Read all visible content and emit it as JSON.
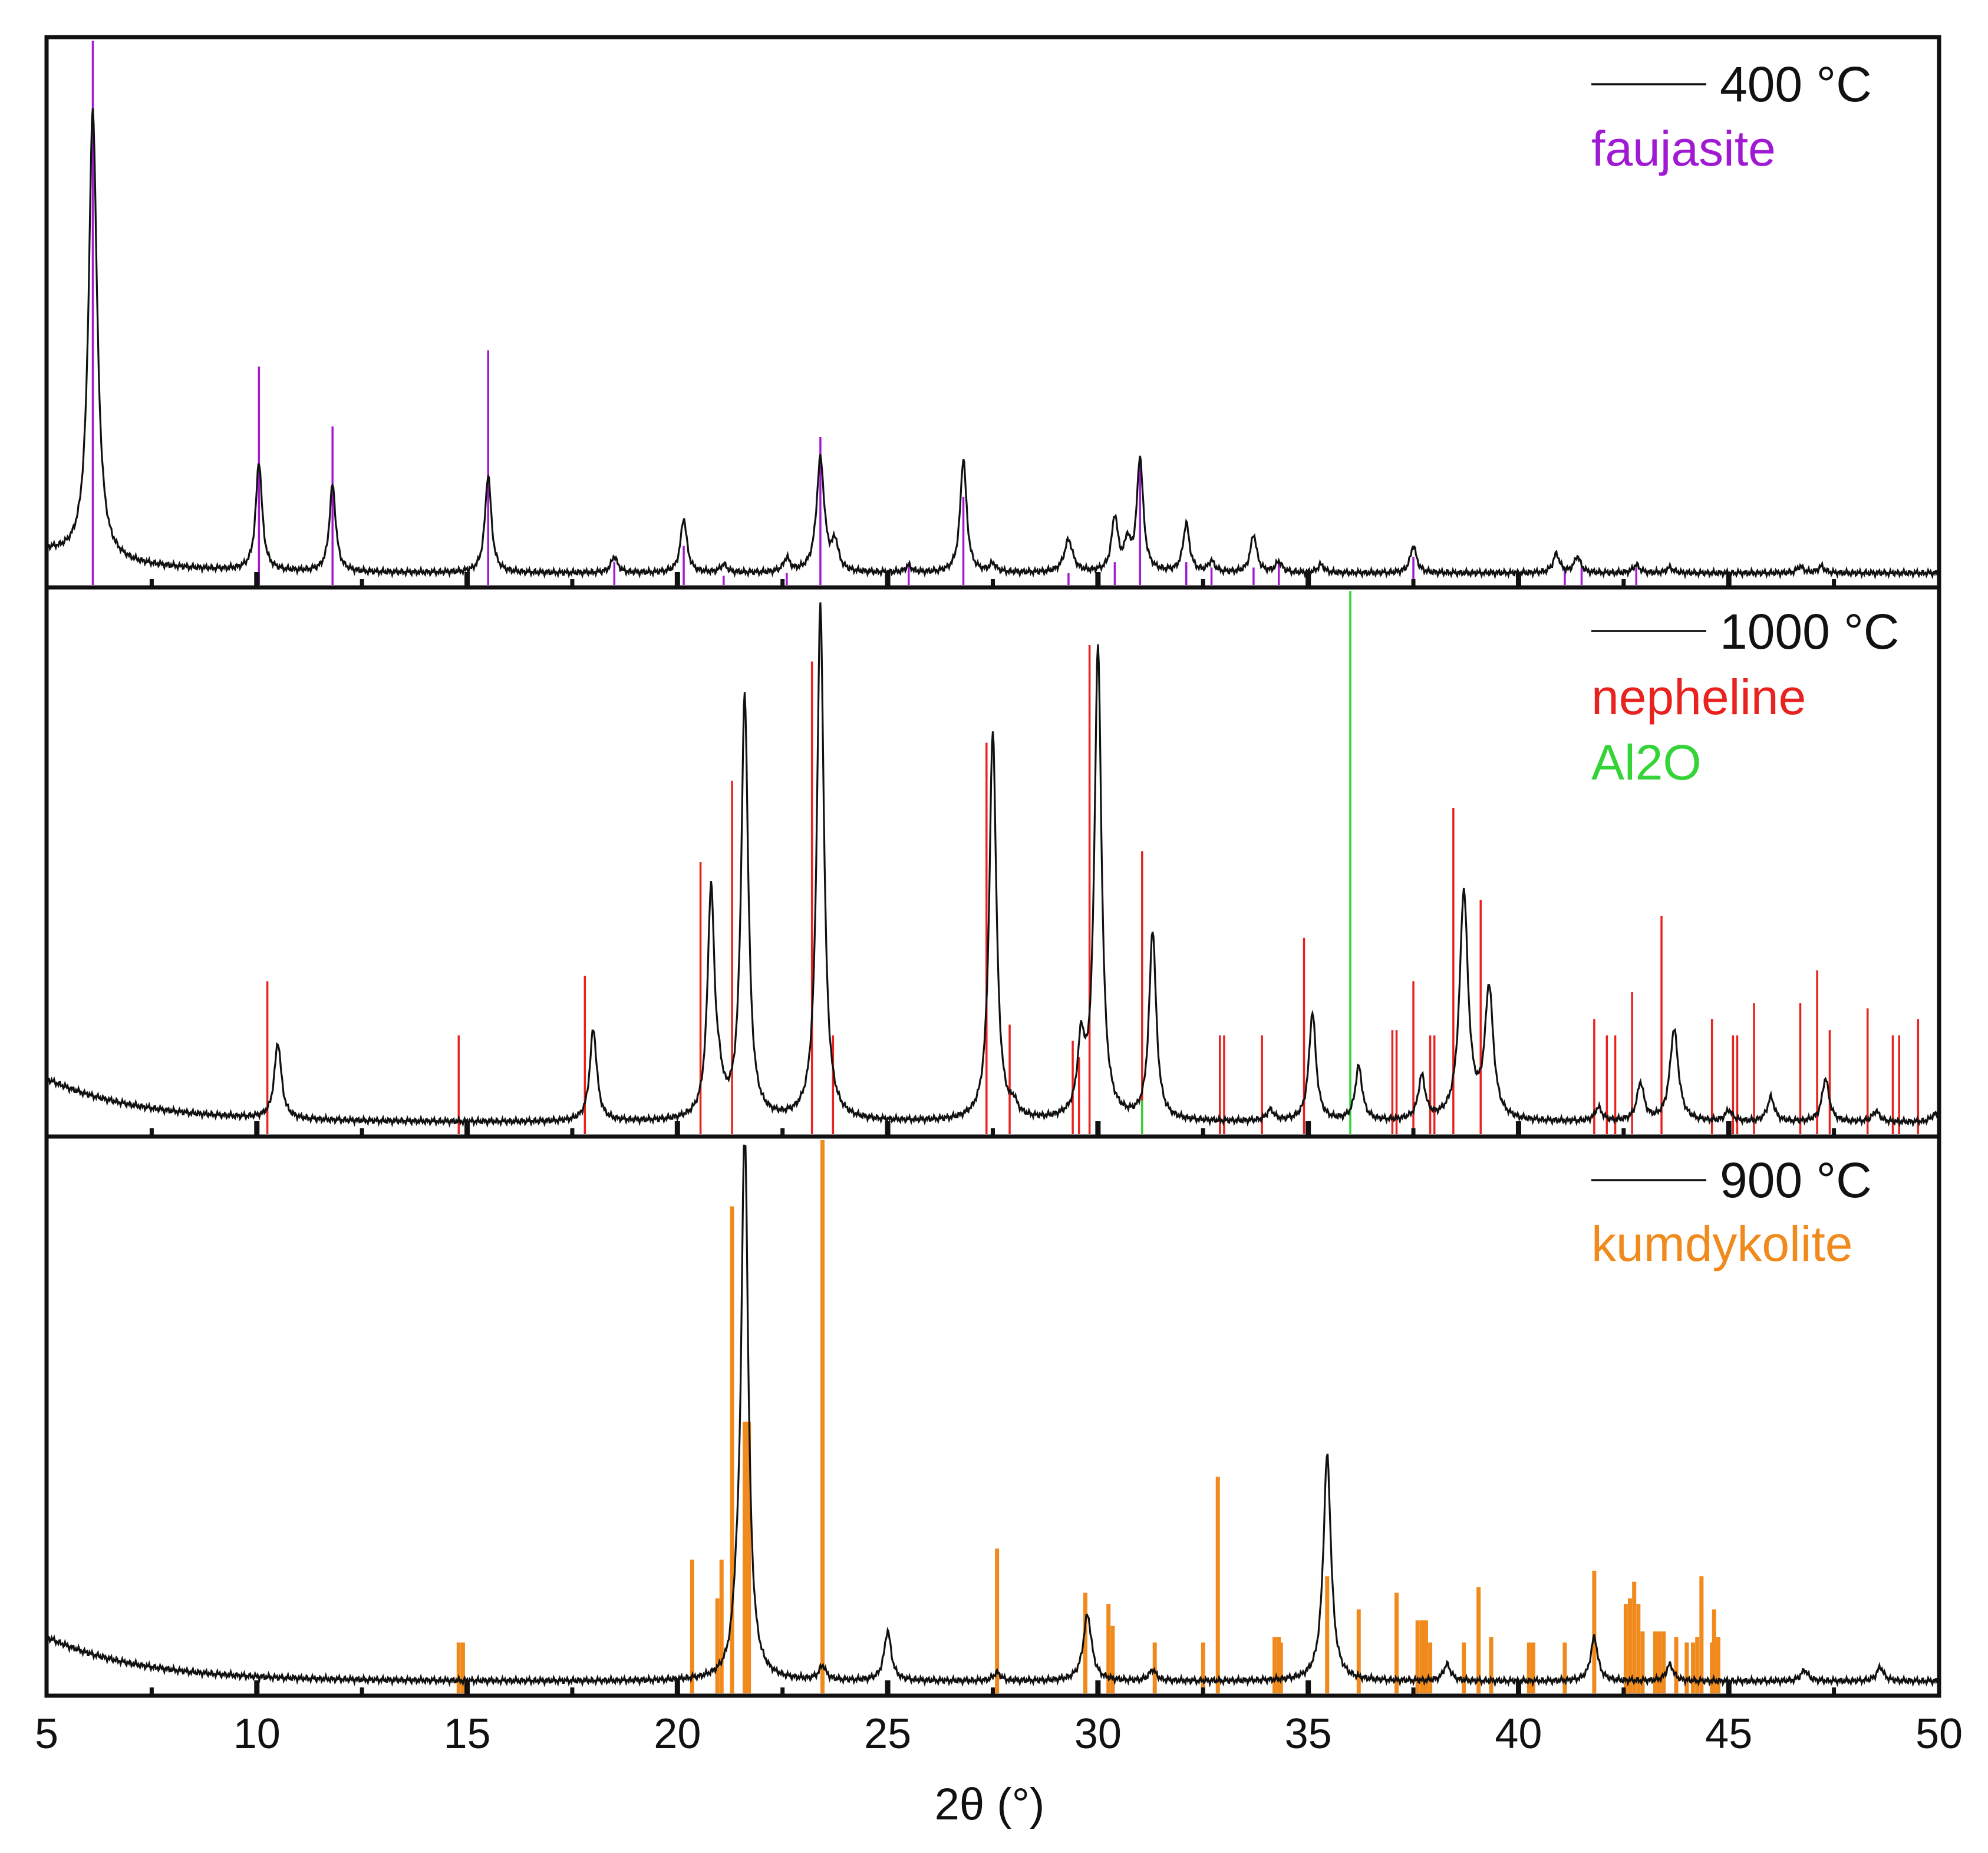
{
  "chart_data": {
    "type": "line",
    "title": "",
    "xlabel": "2θ (°)",
    "ylabel": "",
    "xlim": [
      5,
      50
    ],
    "ylim": [
      0,
      100
    ],
    "x_ticks": [
      5,
      10,
      15,
      20,
      25,
      30,
      35,
      40,
      45,
      50
    ],
    "x_tick_labels": [
      "5",
      "10",
      "15",
      "20",
      "25",
      "30",
      "35",
      "40",
      "45",
      "50"
    ],
    "grid": false,
    "panels": [
      {
        "id": "p400",
        "label": "400 °C",
        "line_color": "#111111",
        "baseline": 2,
        "background": 4,
        "peaks": [
          [
            6.1,
            83,
            0.12
          ],
          [
            10.05,
            20,
            0.09
          ],
          [
            11.8,
            16,
            0.09
          ],
          [
            15.5,
            18,
            0.09
          ],
          [
            18.5,
            3,
            0.09
          ],
          [
            20.15,
            10,
            0.09
          ],
          [
            21.1,
            1.5,
            0.09
          ],
          [
            22.6,
            2.5,
            0.09
          ],
          [
            23.4,
            21,
            0.11
          ],
          [
            23.75,
            5,
            0.09
          ],
          [
            25.5,
            1.2,
            0.09
          ],
          [
            26.8,
            21,
            0.09
          ],
          [
            27.5,
            1.5,
            0.09
          ],
          [
            29.3,
            6,
            0.12
          ],
          [
            30.4,
            10,
            0.09
          ],
          [
            30.7,
            5,
            0.08
          ],
          [
            31.0,
            21,
            0.09
          ],
          [
            32.1,
            9,
            0.09
          ],
          [
            32.7,
            2,
            0.09
          ],
          [
            33.7,
            7,
            0.09
          ],
          [
            34.3,
            2,
            0.09
          ],
          [
            35.3,
            1.5,
            0.09
          ],
          [
            37.5,
            5,
            0.09
          ],
          [
            40.9,
            3.5,
            0.09
          ],
          [
            41.4,
            3,
            0.09
          ],
          [
            42.8,
            1.5,
            0.09
          ],
          [
            43.6,
            1,
            0.09
          ],
          [
            46.7,
            1.2,
            0.09
          ],
          [
            47.2,
            1.2,
            0.09
          ]
        ],
        "reference": {
          "name": "faujasite",
          "color": "#a01ad4",
          "lines": [
            [
              6.1,
              100
            ],
            [
              10.05,
              40
            ],
            [
              11.8,
              29
            ],
            [
              15.5,
              43
            ],
            [
              18.5,
              4
            ],
            [
              20.15,
              7
            ],
            [
              21.1,
              1.5
            ],
            [
              22.6,
              2
            ],
            [
              23.4,
              27
            ],
            [
              25.5,
              4
            ],
            [
              26.8,
              16
            ],
            [
              29.3,
              2
            ],
            [
              30.4,
              4
            ],
            [
              31.0,
              22
            ],
            [
              32.1,
              4
            ],
            [
              32.7,
              3
            ],
            [
              33.7,
              3
            ],
            [
              34.3,
              4
            ],
            [
              37.5,
              5
            ],
            [
              41.1,
              3
            ],
            [
              41.5,
              3
            ],
            [
              42.8,
              3
            ]
          ]
        }
      },
      {
        "id": "p1000",
        "label": "1000 °C",
        "line_color": "#111111",
        "baseline": 2,
        "background": 8,
        "peaks": [
          [
            10.5,
            14,
            0.1
          ],
          [
            18.0,
            17,
            0.1
          ],
          [
            20.8,
            42,
            0.1
          ],
          [
            21.0,
            4,
            0.1
          ],
          [
            21.6,
            78,
            0.1
          ],
          [
            23.4,
            95,
            0.1
          ],
          [
            27.5,
            72,
            0.1
          ],
          [
            28.0,
            2,
            0.1
          ],
          [
            29.6,
            13,
            0.1
          ],
          [
            30.0,
            87,
            0.1
          ],
          [
            31.3,
            35,
            0.1
          ],
          [
            34.1,
            2,
            0.1
          ],
          [
            35.1,
            20,
            0.1
          ],
          [
            36.2,
            10,
            0.1
          ],
          [
            37.7,
            8,
            0.1
          ],
          [
            38.7,
            42,
            0.12
          ],
          [
            39.3,
            24,
            0.12
          ],
          [
            41.9,
            2.5,
            0.1
          ],
          [
            42.9,
            7,
            0.1
          ],
          [
            43.7,
            17,
            0.12
          ],
          [
            45.0,
            2,
            0.1
          ],
          [
            46.0,
            4.5,
            0.1
          ],
          [
            47.3,
            8,
            0.1
          ],
          [
            48.5,
            2,
            0.1
          ],
          [
            49.9,
            1.5,
            0.1
          ]
        ],
        "reference": {
          "name": "nepheline",
          "color": "#e8221e",
          "lines": [
            [
              10.25,
              28
            ],
            [
              14.8,
              18
            ],
            [
              17.8,
              29
            ],
            [
              20.55,
              50
            ],
            [
              21.3,
              65
            ],
            [
              23.2,
              87
            ],
            [
              23.7,
              18
            ],
            [
              27.35,
              72
            ],
            [
              27.9,
              20
            ],
            [
              29.4,
              17
            ],
            [
              29.55,
              14
            ],
            [
              29.8,
              90
            ],
            [
              31.05,
              52
            ],
            [
              32.9,
              18
            ],
            [
              33.0,
              18
            ],
            [
              33.9,
              18
            ],
            [
              34.9,
              36
            ],
            [
              37.0,
              19
            ],
            [
              37.1,
              19
            ],
            [
              37.5,
              28
            ],
            [
              37.9,
              18
            ],
            [
              38.0,
              18
            ],
            [
              38.45,
              60
            ],
            [
              39.1,
              43
            ],
            [
              41.8,
              21
            ],
            [
              42.1,
              18
            ],
            [
              42.3,
              18
            ],
            [
              42.7,
              26
            ],
            [
              43.4,
              40
            ],
            [
              44.6,
              21
            ],
            [
              45.1,
              18
            ],
            [
              45.2,
              18
            ],
            [
              45.6,
              24
            ],
            [
              46.7,
              24
            ],
            [
              47.1,
              30
            ],
            [
              47.4,
              19
            ],
            [
              48.3,
              23
            ],
            [
              48.9,
              18
            ],
            [
              49.05,
              18
            ],
            [
              49.5,
              21
            ]
          ]
        },
        "reference2": {
          "name": "Al2O",
          "color": "#34d438",
          "lines": [
            [
              31.05,
              6
            ],
            [
              36.0,
              100
            ]
          ]
        }
      },
      {
        "id": "p900",
        "label": "900 °C",
        "line_color": "#111111",
        "baseline": 2,
        "background": 8,
        "peaks": [
          [
            21.6,
            100,
            0.1
          ],
          [
            21.4,
            6,
            0.1
          ],
          [
            23.45,
            2.5,
            0.1
          ],
          [
            25.0,
            9,
            0.1
          ],
          [
            27.6,
            1.5,
            0.1
          ],
          [
            29.75,
            12,
            0.12
          ],
          [
            31.3,
            2,
            0.1
          ],
          [
            35.45,
            41,
            0.11
          ],
          [
            38.3,
            3,
            0.1
          ],
          [
            41.8,
            8,
            0.1
          ],
          [
            43.6,
            3,
            0.1
          ],
          [
            46.8,
            2,
            0.1
          ],
          [
            48.6,
            2.5,
            0.1
          ]
        ],
        "reference": {
          "name": "kumdykolite",
          "color": "#f08a1c",
          "lines": [
            [
              14.8,
              9
            ],
            [
              14.9,
              9
            ],
            [
              20.35,
              24
            ],
            [
              20.95,
              17
            ],
            [
              21.05,
              24
            ],
            [
              21.3,
              88
            ],
            [
              21.6,
              49
            ],
            [
              21.7,
              49
            ],
            [
              23.45,
              100
            ],
            [
              27.6,
              26
            ],
            [
              29.7,
              18
            ],
            [
              30.25,
              16
            ],
            [
              30.35,
              12
            ],
            [
              31.35,
              9
            ],
            [
              32.5,
              9
            ],
            [
              32.85,
              39
            ],
            [
              34.2,
              10
            ],
            [
              34.3,
              10
            ],
            [
              34.35,
              9
            ],
            [
              35.45,
              21
            ],
            [
              36.2,
              15
            ],
            [
              37.1,
              18
            ],
            [
              37.6,
              13
            ],
            [
              37.7,
              13
            ],
            [
              37.75,
              13
            ],
            [
              37.8,
              13
            ],
            [
              37.9,
              9
            ],
            [
              38.7,
              9
            ],
            [
              39.05,
              19
            ],
            [
              39.35,
              10
            ],
            [
              40.25,
              9
            ],
            [
              40.35,
              9
            ],
            [
              41.1,
              9
            ],
            [
              41.8,
              22
            ],
            [
              42.55,
              16
            ],
            [
              42.65,
              17
            ],
            [
              42.75,
              20
            ],
            [
              42.85,
              16
            ],
            [
              42.95,
              11
            ],
            [
              43.25,
              11
            ],
            [
              43.35,
              11
            ],
            [
              43.45,
              11
            ],
            [
              43.75,
              10
            ],
            [
              44.0,
              9
            ],
            [
              44.15,
              9
            ],
            [
              44.25,
              10
            ],
            [
              44.35,
              21
            ],
            [
              44.6,
              9
            ],
            [
              44.65,
              15
            ],
            [
              44.75,
              10
            ]
          ]
        }
      }
    ]
  }
}
